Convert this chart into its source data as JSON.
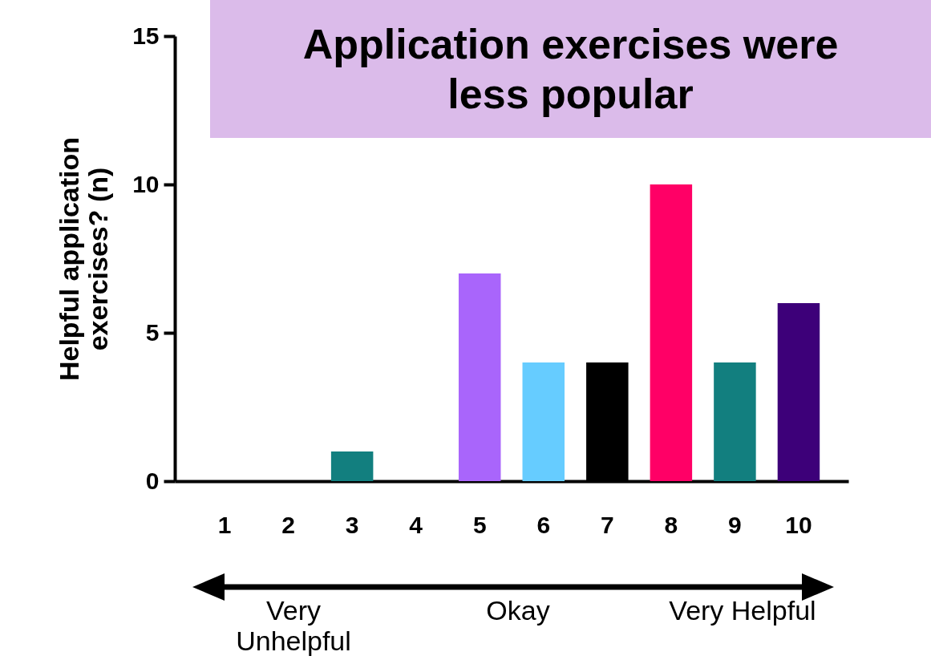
{
  "chart_data": {
    "type": "bar",
    "title": "Application exercises were less popular",
    "ylabel": "Helpful application exercises? (n)",
    "categories": [
      "1",
      "2",
      "3",
      "4",
      "5",
      "6",
      "7",
      "8",
      "9",
      "10"
    ],
    "values": [
      0,
      0,
      1,
      0,
      7,
      4,
      4,
      10,
      4,
      6
    ],
    "colors": [
      "#127f7f",
      "#127f7f",
      "#127f7f",
      "#127f7f",
      "#a965fb",
      "#66ccff",
      "#000000",
      "#ff0066",
      "#127f7f",
      "#3d0079"
    ],
    "ylim": [
      0,
      15
    ],
    "yticks": [
      0,
      5,
      10,
      15
    ],
    "grid": false,
    "legend": false,
    "annotations": [
      "Very Unhelpful",
      "Okay",
      "Very Helpful"
    ]
  }
}
